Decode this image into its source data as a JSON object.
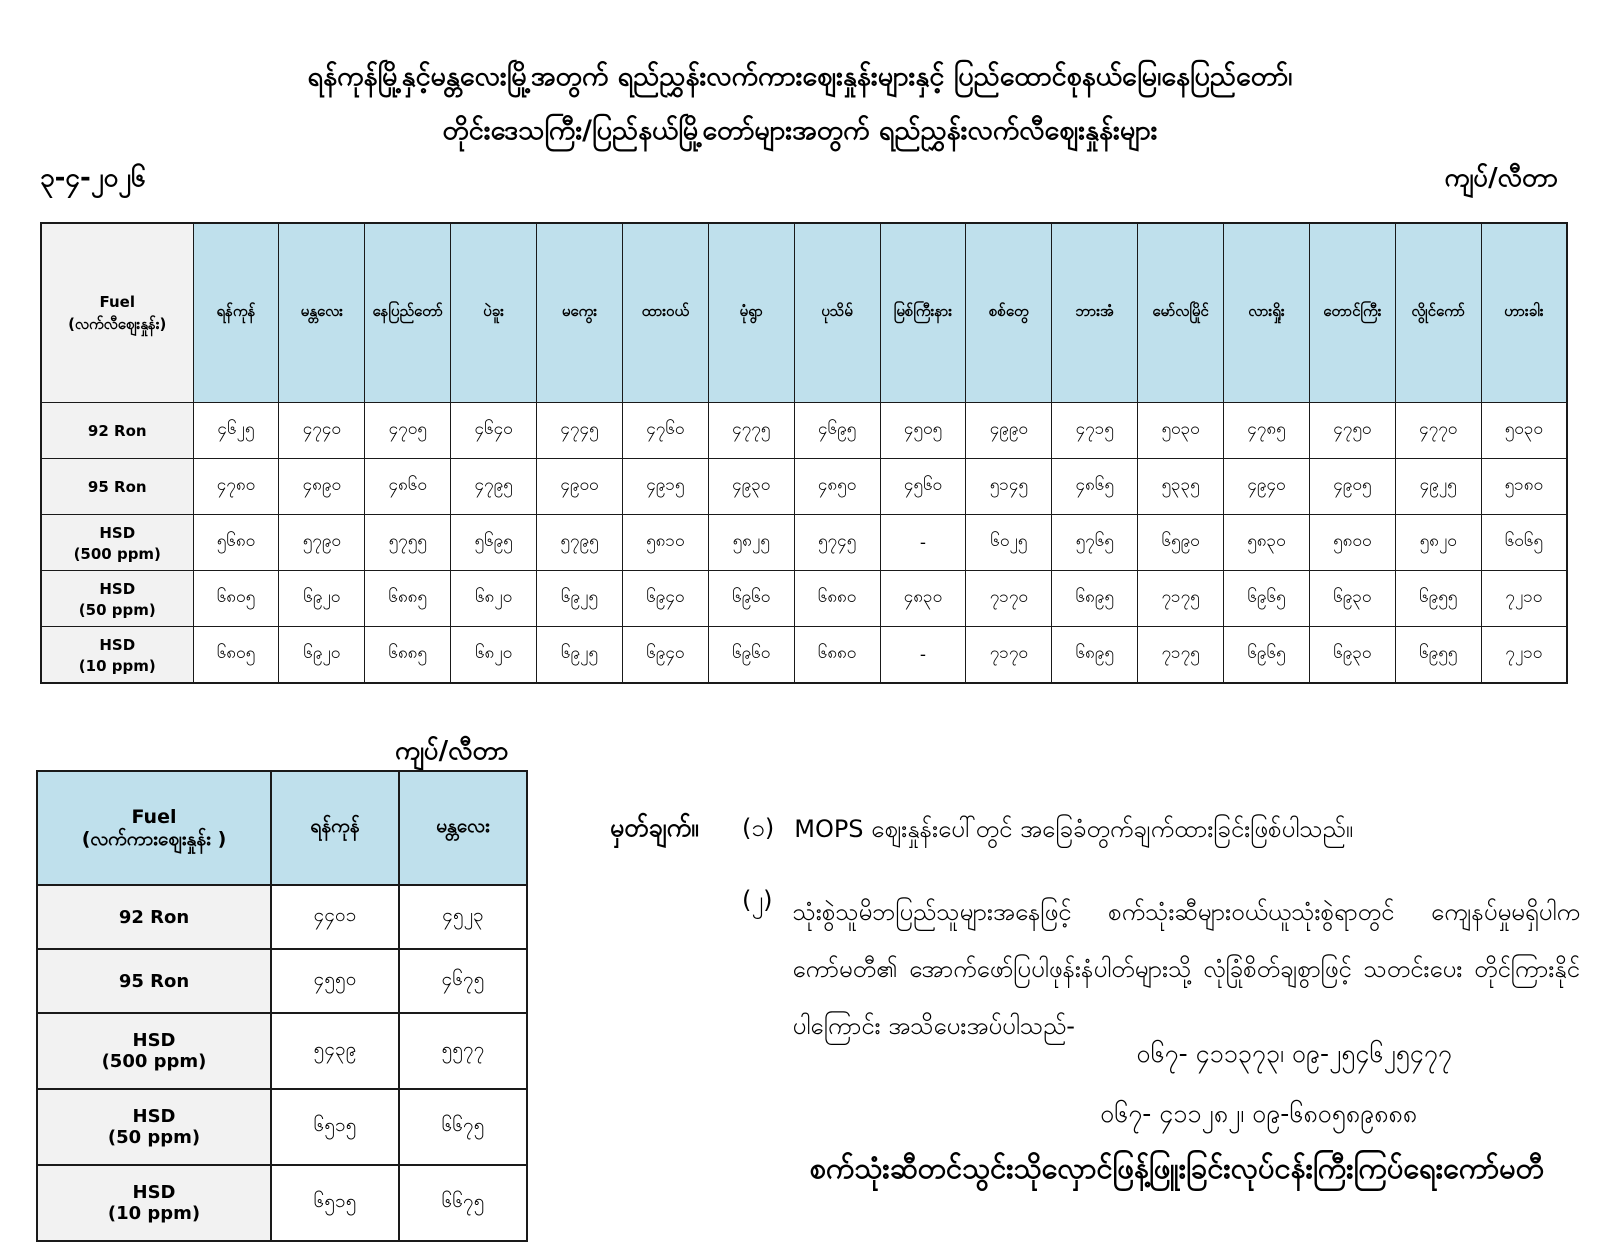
{
  "page": {
    "title_line1": "ရန်ကုန်မြို့နှင့်မန္တလေးမြို့အတွက် ရည်ညွှန်းလက်ကားဈေးနှုန်းများနှင့် ပြည်ထောင်စုနယ်မြေ၊နေပြည်တော်၊",
    "title_line2": "တိုင်းဒေသကြီး/ပြည်နယ်မြို့တော်များအတွက် ရည်ညွှန်းလက်လီဈေးနှုန်းများ",
    "date": "၃-၄-၂၀၂၆",
    "unit_label": "ကျပ်/လီတာ"
  },
  "retail_table": {
    "header_fuel": "Fuel",
    "header_fuel_sub": "(လက်လီဈေးနှုန်း)",
    "cities": [
      "ရန်ကုန်",
      "မန္တလေး",
      "နေပြည်တော်",
      "ပဲခူး",
      "မကွေး",
      "ထားဝယ်",
      "မုံရွာ",
      "ပုသိမ်",
      "မြစ်ကြီးနား",
      "စစ်တွေ",
      "ဘားအံ",
      "မော်လမြိုင်",
      "လားရှိုး",
      "တောင်ကြီး",
      "လွိုင်ကော်",
      "ဟားခါး"
    ],
    "rows": [
      {
        "fuel": "92 Ron",
        "fuel2": "",
        "values": [
          "၄၆၂၅",
          "၄၇၄၀",
          "၄၇၀၅",
          "၄၆၄၀",
          "၄၇၄၅",
          "၄၇၆၀",
          "၄၇၇၅",
          "၄၆၉၅",
          "၄၅၀၅",
          "၄၉၉၀",
          "၄၇၁၅",
          "၅၀၃၀",
          "၄၇၈၅",
          "၄၇၅၀",
          "၄၇၇၀",
          "၅၀၃၀"
        ]
      },
      {
        "fuel": "95 Ron",
        "fuel2": "",
        "values": [
          "၄၇၈၀",
          "၄၈၉၀",
          "၄၈၆၀",
          "၄၇၉၅",
          "၄၉၀၀",
          "၄၉၁၅",
          "၄၉၃၀",
          "၄၈၅၀",
          "၄၅၆၀",
          "၅၁၄၅",
          "၄၈၆၅",
          "၅၃၃၅",
          "၄၉၄၀",
          "၄၉၀၅",
          "၄၉၂၅",
          "၅၁၈၀"
        ]
      },
      {
        "fuel": "HSD",
        "fuel2": "(500 ppm)",
        "values": [
          "၅၆၈၀",
          "၅၇၉၀",
          "၅၇၅၅",
          "၅၆၉၅",
          "၅၇၉၅",
          "၅၈၁၀",
          "၅၈၂၅",
          "၅၇၄၅",
          "-",
          "၆၀၂၅",
          "၅၇၆၅",
          "၆၅၉၀",
          "၅၈၃၀",
          "၅၈၀၀",
          "၅၈၂၀",
          "၆၀၆၅"
        ]
      },
      {
        "fuel": "HSD",
        "fuel2": "(50 ppm)",
        "values": [
          "၆၈၀၅",
          "၆၉၂၀",
          "၆၈၈၅",
          "၆၈၂၀",
          "၆၉၂၅",
          "၆၉၄၀",
          "၆၉၆၀",
          "၆၈၈၀",
          "၄၈၃၀",
          "၇၁၇၀",
          "၆၈၉၅",
          "၇၁၇၅",
          "၆၉၆၅",
          "၆၉၃၀",
          "၆၉၅၅",
          "၇၂၁၀"
        ]
      },
      {
        "fuel": "HSD",
        "fuel2": "(10 ppm)",
        "values": [
          "၆၈၀၅",
          "၆၉၂၀",
          "၆၈၈၅",
          "၆၈၂၀",
          "၆၉၂၅",
          "၆၉၄၀",
          "၆၉၆၀",
          "၆၈၈၀",
          "-",
          "၇၁၇၀",
          "၆၈၉၅",
          "၇၁၇၅",
          "၆၉၆၅",
          "၆၉၃၀",
          "၆၉၅၅",
          "၇၂၁၀"
        ]
      }
    ]
  },
  "wholesale_table": {
    "unit_label": "ကျပ်/လီတာ",
    "header_fuel": "Fuel",
    "header_fuel_sub": "(လက်ကားဈေးနှုန်း )",
    "cities": [
      "ရန်ကုန်",
      "မန္တလေး"
    ],
    "rows": [
      {
        "fuel": "92 Ron",
        "fuel2": "",
        "values": [
          "၄၄၀၁",
          "၄၅၂၃"
        ]
      },
      {
        "fuel": "95 Ron",
        "fuel2": "",
        "values": [
          "၄၅၅၀",
          "၄၆၇၅"
        ]
      },
      {
        "fuel": "HSD",
        "fuel2": "(500 ppm)",
        "values": [
          "၅၄၃၉",
          "၅၅၇၇"
        ]
      },
      {
        "fuel": "HSD",
        "fuel2": "(50 ppm)",
        "values": [
          "၆၅၁၅",
          "၆၆၇၅"
        ]
      },
      {
        "fuel": "HSD",
        "fuel2": "(10 ppm)",
        "values": [
          "၆၅၁၅",
          "၆၆၇၅"
        ]
      }
    ]
  },
  "notes": {
    "label": "မှတ်ချက်။",
    "items": [
      {
        "num": "(၁)",
        "text": "MOPS ဈေးနှုန်းပေါ်တွင် အခြေခံတွက်ချက်ထားခြင်းဖြစ်ပါသည်။"
      },
      {
        "num": "(၂)",
        "text": "သုံးစွဲသူမိဘပြည်သူများအနေဖြင့် စက်သုံးဆီများဝယ်ယူသုံးစွဲရာတွင် ကျေနပ်မှုမရှိပါက ကော်မတီ၏ အောက်ဖော်ပြပါဖုန်းနံပါတ်များသို့ လုံခြုံစိတ်ချစွာဖြင့် သတင်းပေး တိုင်ကြားနိုင်ပါကြောင်း အသိပေးအပ်ပါသည်-"
      }
    ],
    "phones": [
      "၀၆၇- ၄၁၁၃၇၃၊ ၀၉-၂၅၄၆၂၅၄၇၇",
      "၀၆၇- ၄၁၁၂၈၂၊ ၀၉-၆၈၀၅၈၉၈၈၈"
    ]
  },
  "footer": {
    "committee": "စက်သုံးဆီတင်သွင်းသိုလှောင်ဖြန့်ဖြူးခြင်းလုပ်ငန်းကြီးကြပ်ရေးကော်မတီ"
  },
  "colors": {
    "header_fill": "#bfe0ec",
    "fuel_column_fill": "#f2f2f2",
    "border": "#1a1a1a"
  }
}
